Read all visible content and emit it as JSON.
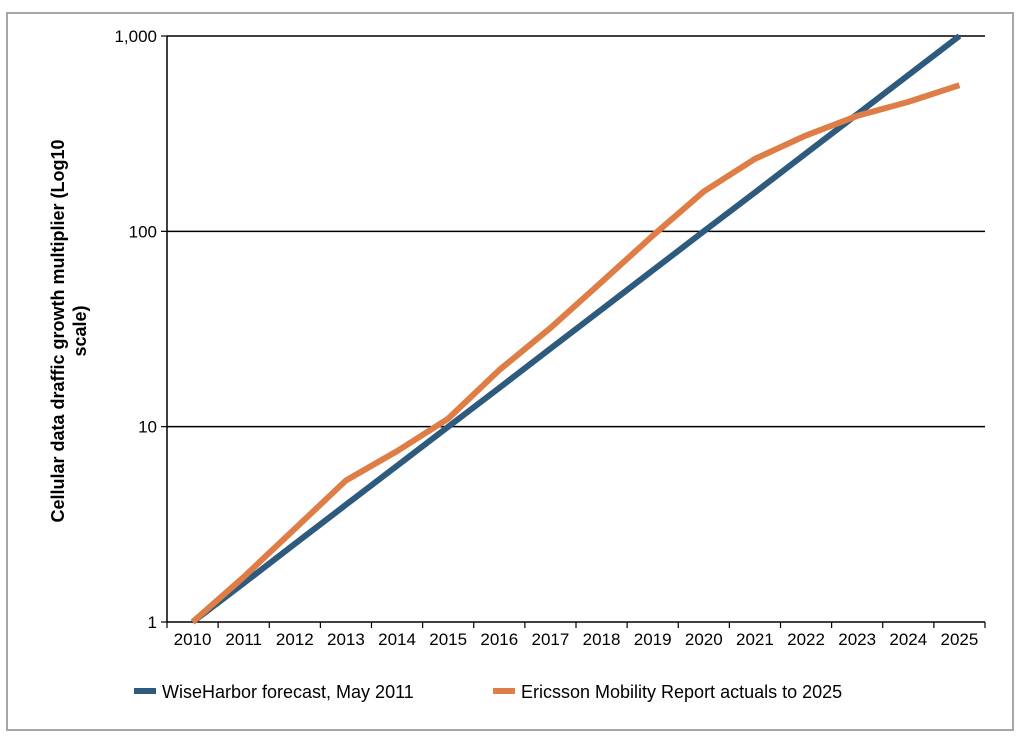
{
  "chart_data": {
    "type": "line",
    "ylabel_lines": [
      "Cellular data draffic growth multiplier (Log10",
      "scale)"
    ],
    "y_scale": "log10",
    "ylim": [
      1,
      1000
    ],
    "y_ticks": [
      1,
      10,
      100,
      1000
    ],
    "y_tick_labels": [
      "1",
      "10",
      "100",
      "1,000"
    ],
    "grid": "horizontal",
    "legend_position": "bottom",
    "x_categories": [
      "2010",
      "2011",
      "2012",
      "2013",
      "2014",
      "2015",
      "2016",
      "2017",
      "2018",
      "2019",
      "2020",
      "2021",
      "2022",
      "2023",
      "2024",
      "2025"
    ],
    "series": [
      {
        "name": "WiseHarbor forecast, May 2011",
        "color": "#2e5b7d",
        "values": [
          1,
          1.58,
          2.51,
          3.98,
          6.31,
          10,
          15.8,
          25.1,
          39.8,
          63.1,
          100,
          158,
          251,
          398,
          631,
          1000
        ]
      },
      {
        "name": "Ericsson Mobility Report actuals to 2025",
        "color": "#de7d45",
        "values": [
          1,
          1.7,
          3.0,
          5.3,
          7.5,
          11.0,
          19.5,
          32.0,
          55.0,
          95.0,
          160,
          235,
          310,
          390,
          460,
          560
        ]
      }
    ]
  }
}
